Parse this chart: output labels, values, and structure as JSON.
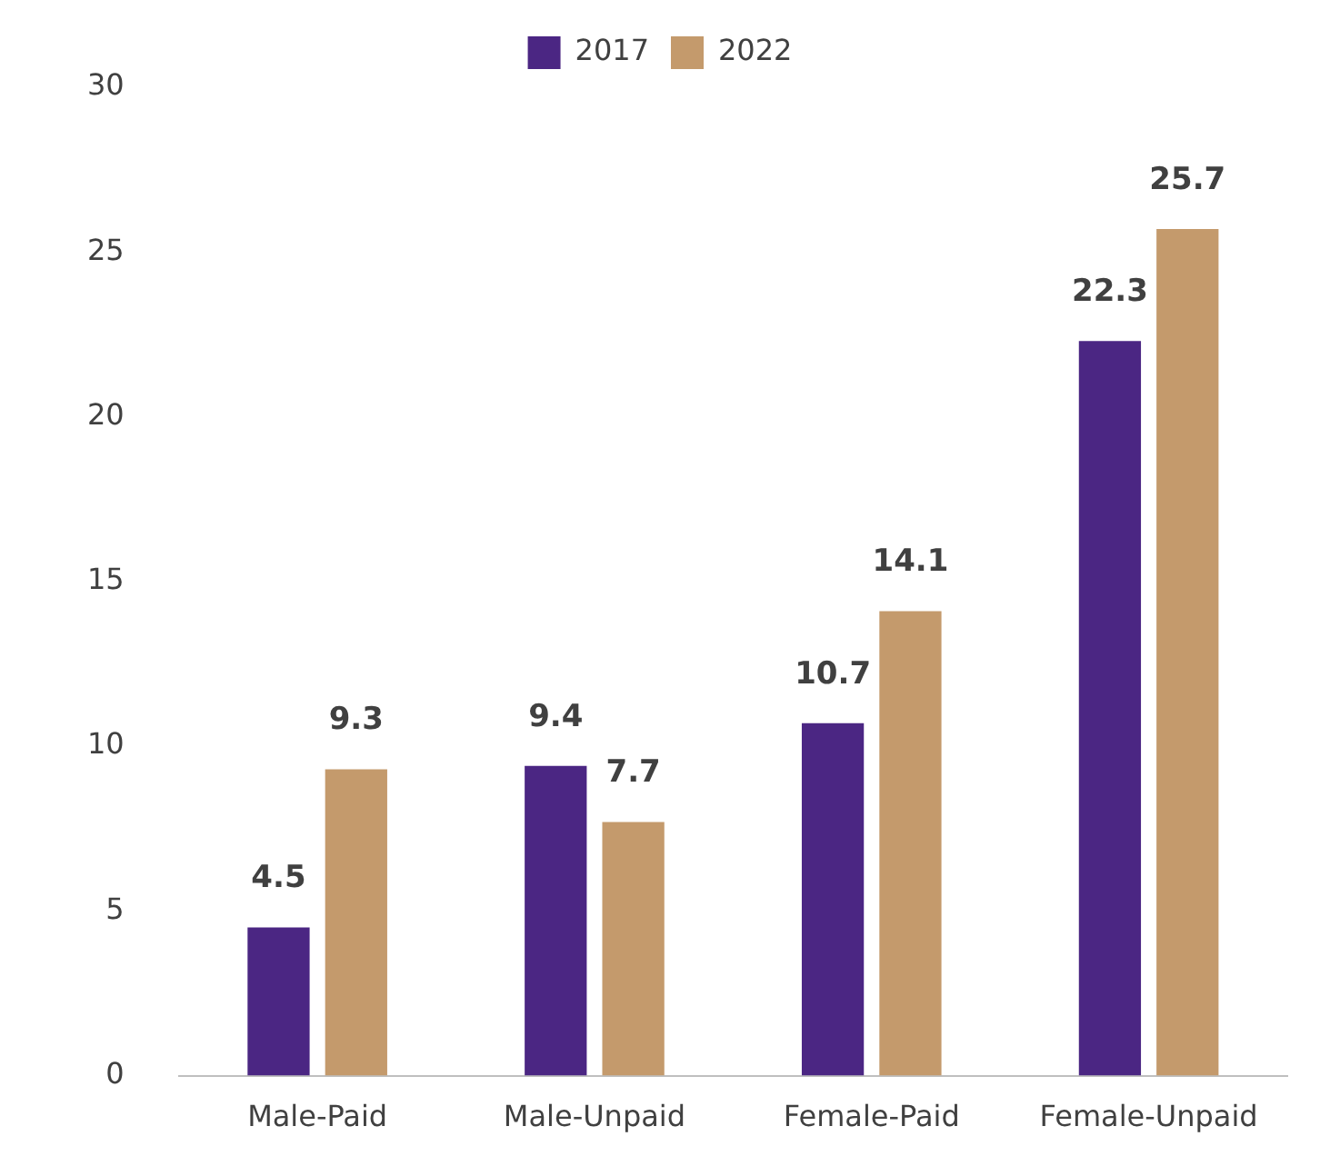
{
  "chart_data": {
    "type": "bar",
    "categories": [
      "Male-Paid",
      "Male-Unpaid",
      "Female-Paid",
      "Female-Unpaid"
    ],
    "series": [
      {
        "name": "2017",
        "color": "#4b2683",
        "values": [
          4.5,
          9.4,
          10.7,
          22.3
        ]
      },
      {
        "name": "2022",
        "color": "#c49a6c",
        "values": [
          9.3,
          7.7,
          14.1,
          25.7
        ]
      }
    ],
    "ylim": [
      0,
      30
    ],
    "yticks": [
      0,
      5,
      10,
      15,
      20,
      25,
      30
    ],
    "grid": false,
    "legend": "top",
    "data_labels": true
  }
}
